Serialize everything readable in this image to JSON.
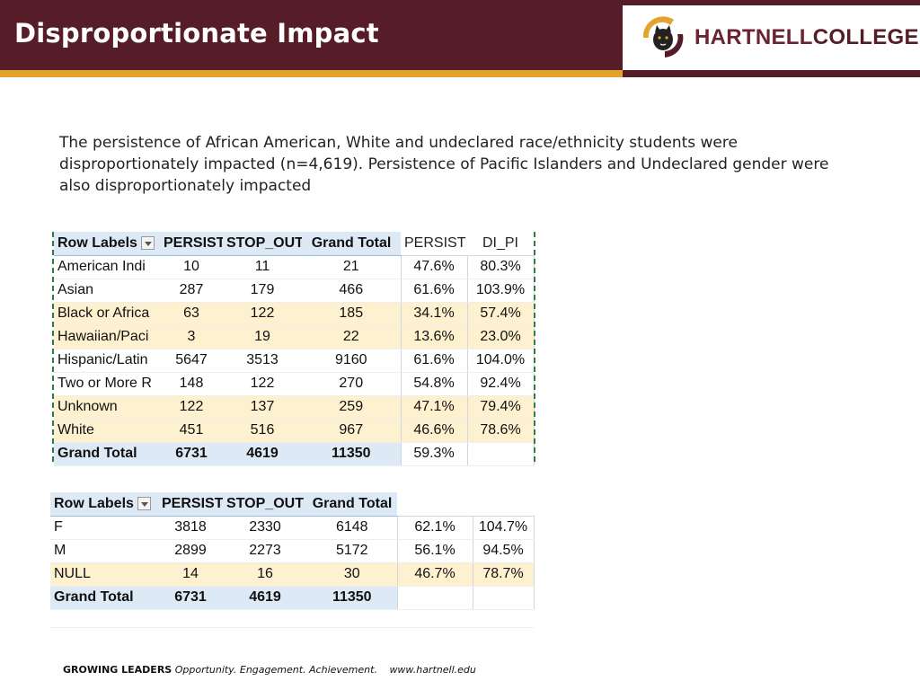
{
  "header": {
    "title": "Disproportionate Impact",
    "logo_text_1": "HARTNELL",
    "logo_text_2": "COLLEGE",
    "colors": {
      "maroon": "#561c28",
      "gold": "#e3a32c"
    }
  },
  "intro": "The persistence of African American, White and undeclared race/ethnicity students were disproportionately impacted (n=4,619). Persistence of Pacific Islanders and Undeclared gender were also disproportionately impacted",
  "race_table": {
    "headers": [
      "Row Labels",
      "PERSIST",
      "STOP_OUT",
      "Grand Total",
      "PERSIST",
      "DI_PI"
    ],
    "rows": [
      {
        "label": "American Indi",
        "persist": "10",
        "stop_out": "11",
        "total": "21",
        "pct": "47.6%",
        "di": "80.3%"
      },
      {
        "label": "Asian",
        "persist": "287",
        "stop_out": "179",
        "total": "466",
        "pct": "61.6%",
        "di": "103.9%"
      },
      {
        "label": "Black or Africa",
        "persist": "63",
        "stop_out": "122",
        "total": "185",
        "pct": "34.1%",
        "di": "57.4%"
      },
      {
        "label": "Hawaiian/Paci",
        "persist": "3",
        "stop_out": "19",
        "total": "22",
        "pct": "13.6%",
        "di": "23.0%"
      },
      {
        "label": "Hispanic/Latin",
        "persist": "5647",
        "stop_out": "3513",
        "total": "9160",
        "pct": "61.6%",
        "di": "104.0%"
      },
      {
        "label": "Two or More R",
        "persist": "148",
        "stop_out": "122",
        "total": "270",
        "pct": "54.8%",
        "di": "92.4%"
      },
      {
        "label": "Unknown",
        "persist": "122",
        "stop_out": "137",
        "total": "259",
        "pct": "47.1%",
        "di": "79.4%"
      },
      {
        "label": "White",
        "persist": "451",
        "stop_out": "516",
        "total": "967",
        "pct": "46.6%",
        "di": "78.6%"
      }
    ],
    "grand": {
      "label": "Grand Total",
      "persist": "6731",
      "stop_out": "4619",
      "total": "11350",
      "pct": "59.3%",
      "di": ""
    }
  },
  "gender_table": {
    "headers": [
      "Row Labels",
      "PERSIST",
      "STOP_OUT",
      "Grand Total"
    ],
    "rows": [
      {
        "label": "F",
        "persist": "3818",
        "stop_out": "2330",
        "total": "6148",
        "pct": "62.1%",
        "di": "104.7%"
      },
      {
        "label": "M",
        "persist": "2899",
        "stop_out": "2273",
        "total": "5172",
        "pct": "56.1%",
        "di": "94.5%"
      },
      {
        "label": "NULL",
        "persist": "14",
        "stop_out": "16",
        "total": "30",
        "pct": "46.7%",
        "di": "78.7%"
      }
    ],
    "grand": {
      "label": "Grand Total",
      "persist": "6731",
      "stop_out": "4619",
      "total": "11350"
    }
  },
  "footer": {
    "bold": "GROWING LEADERS",
    "tagline": "Opportunity. Engagement. Achievement.",
    "url": "www.hartnell.edu"
  }
}
